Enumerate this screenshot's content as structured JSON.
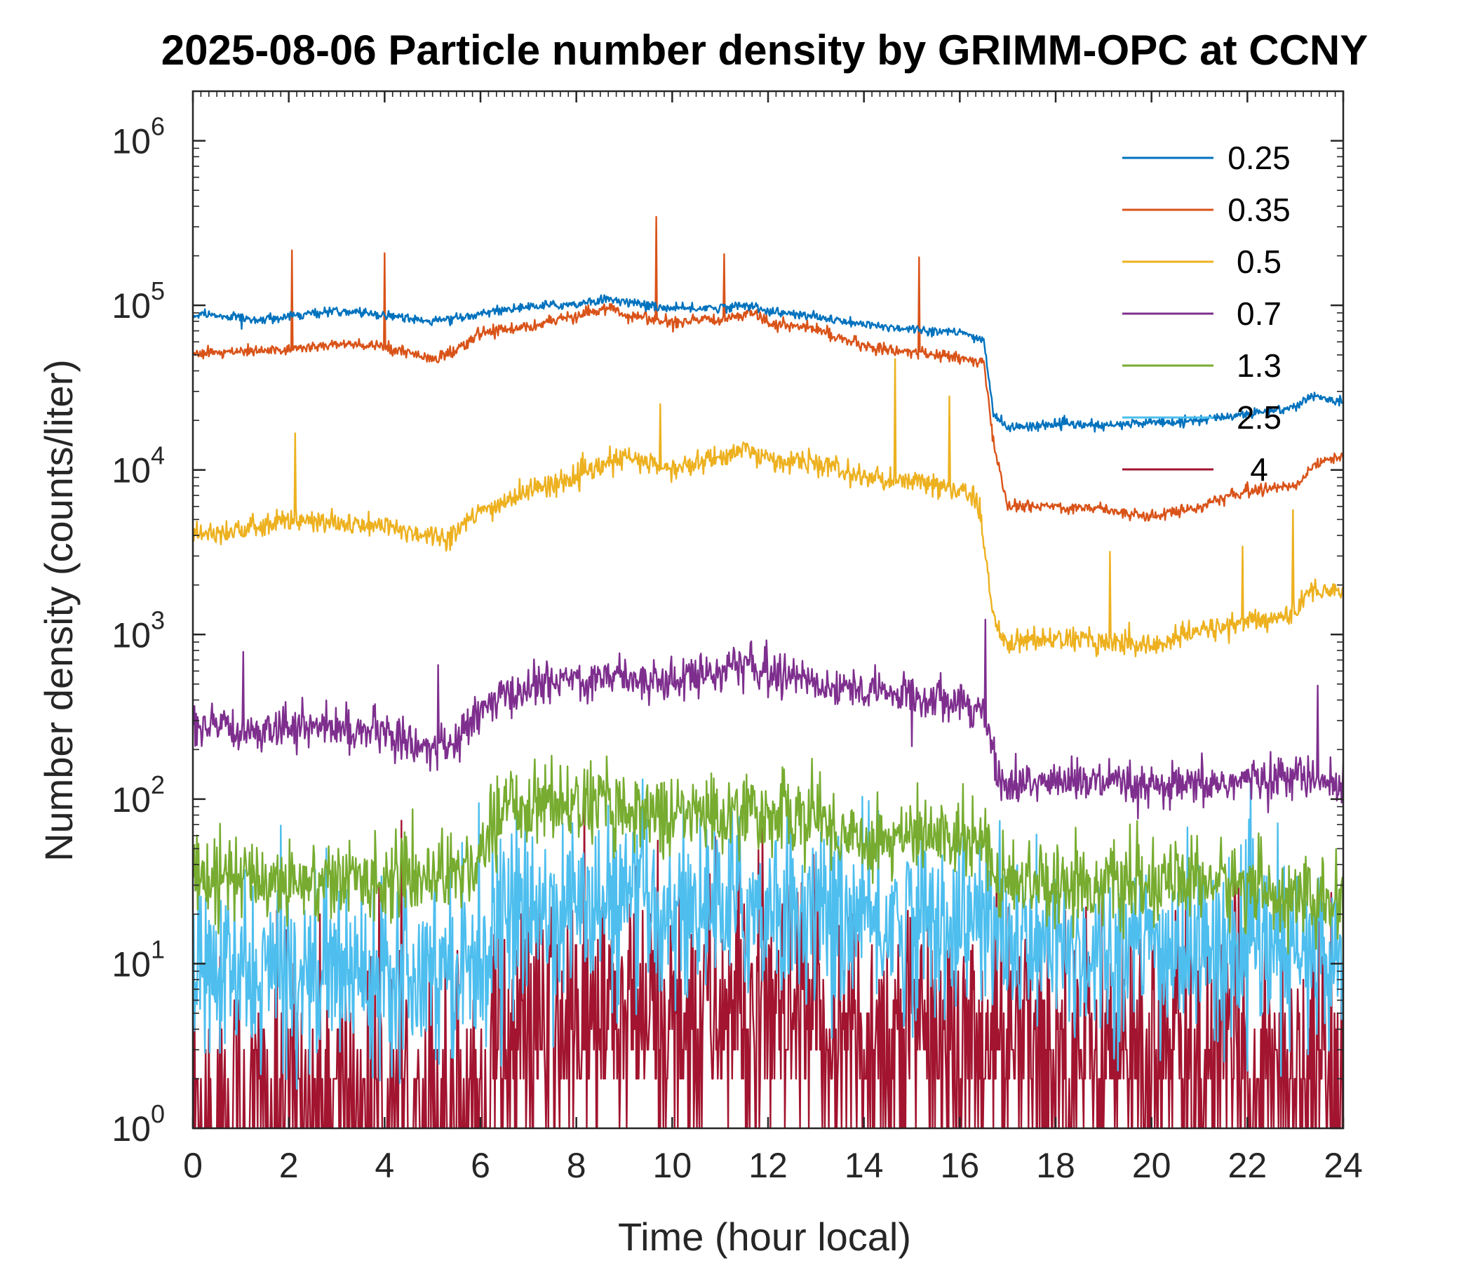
{
  "chart_data": {
    "type": "line",
    "title": "2025-08-06 Particle number density by GRIMM-OPC at CCNY",
    "xlabel": "Time (hour local)",
    "ylabel": "Number density (counts/liter)",
    "xlim": [
      0,
      24
    ],
    "ylim": [
      1,
      2000000
    ],
    "yscale": "log",
    "grid": false,
    "legend_position": "top-right",
    "x_ticks": [
      "0",
      "2",
      "4",
      "6",
      "8",
      "10",
      "12",
      "14",
      "16",
      "18",
      "20",
      "22",
      "24"
    ],
    "y_tick_exponents": [
      "0",
      "1",
      "2",
      "3",
      "4",
      "5",
      "6"
    ],
    "y_tick_base": "10",
    "series": [
      {
        "name": "0.25",
        "color": "#0072BD",
        "noise": 0.04,
        "x": [
          0,
          1,
          1.5,
          2,
          3,
          4,
          5,
          5.5,
          6,
          7,
          8,
          8.7,
          9,
          10,
          11,
          11.7,
          12,
          13,
          14,
          15,
          16,
          16.5,
          16.7,
          17,
          18,
          19,
          20,
          21,
          22,
          23,
          23.3,
          24
        ],
        "y": [
          88000,
          84000,
          82000,
          87000,
          92000,
          88000,
          80000,
          82000,
          90000,
          98000,
          102000,
          110000,
          105000,
          95000,
          97000,
          100000,
          92000,
          85000,
          76000,
          72000,
          68000,
          62000,
          22000,
          18000,
          19000,
          18500,
          19500,
          20000,
          22000,
          24000,
          28000,
          26000
        ]
      },
      {
        "name": "0.35",
        "color": "#D95319",
        "noise": 0.05,
        "x": [
          0,
          1,
          2,
          3,
          4,
          5,
          5.5,
          6,
          7,
          8,
          8.7,
          9,
          10,
          11,
          11.7,
          12,
          13,
          14,
          15,
          16,
          16.5,
          16.7,
          17,
          18,
          19,
          20,
          21,
          22,
          23,
          23.4,
          24
        ],
        "y": [
          52000,
          52000,
          54000,
          58000,
          56000,
          48000,
          52000,
          68000,
          75000,
          85000,
          98000,
          88000,
          78000,
          82000,
          92000,
          78000,
          72000,
          56000,
          52000,
          48000,
          44000,
          15000,
          6000,
          6000,
          5800,
          5200,
          6000,
          7500,
          8000,
          11000,
          12000
        ]
      },
      {
        "name": "0.5",
        "color": "#EDB120",
        "noise": 0.1,
        "x": [
          0,
          1,
          1.5,
          2,
          3,
          4,
          5,
          5.3,
          6,
          7,
          8,
          9,
          10,
          11,
          11.5,
          12,
          13,
          14,
          15,
          16,
          16.4,
          16.7,
          17,
          18,
          19,
          20,
          21,
          22,
          23,
          23.3,
          24
        ],
        "y": [
          4200,
          4300,
          4500,
          5000,
          4700,
          4500,
          4000,
          3900,
          5500,
          7500,
          9000,
          12000,
          10000,
          12000,
          13500,
          11500,
          11000,
          9000,
          8500,
          7500,
          6500,
          1200,
          900,
          950,
          900,
          850,
          1050,
          1200,
          1300,
          1900,
          1800
        ]
      },
      {
        "name": "0.7",
        "color": "#7E2F8E",
        "noise": 0.18,
        "x": [
          0,
          1,
          2,
          3,
          4,
          5,
          5.5,
          6,
          7,
          8,
          9,
          10,
          11,
          11.5,
          12,
          13,
          14,
          15,
          16,
          16.5,
          16.8,
          17,
          18,
          19,
          20,
          21,
          22,
          23,
          24
        ],
        "y": [
          270,
          260,
          280,
          270,
          250,
          200,
          220,
          350,
          480,
          540,
          560,
          520,
          620,
          650,
          600,
          520,
          450,
          420,
          410,
          330,
          140,
          120,
          130,
          125,
          115,
          120,
          130,
          140,
          120
        ]
      },
      {
        "name": "1.3",
        "color": "#77AC30",
        "noise": 0.35,
        "x": [
          0,
          1,
          2,
          3,
          4,
          5,
          6,
          6.3,
          7,
          8,
          9,
          10,
          11,
          12,
          13,
          13.5,
          14,
          15,
          16,
          16.5,
          16.8,
          17,
          18,
          19,
          20,
          21,
          22,
          23,
          24
        ],
        "y": [
          38,
          33,
          32,
          32,
          33,
          35,
          40,
          85,
          95,
          95,
          90,
          80,
          82,
          82,
          80,
          62,
          58,
          58,
          60,
          58,
          35,
          33,
          32,
          30,
          30,
          32,
          30,
          25,
          22
        ]
      },
      {
        "name": "2.5",
        "color": "#4DBEEE",
        "noise": 0.55,
        "x": [
          0,
          1,
          2,
          3,
          4,
          5,
          6,
          6.3,
          7,
          8,
          9,
          10,
          11,
          12,
          13,
          14,
          15,
          16,
          16.5,
          17,
          18,
          19,
          20,
          21,
          22,
          23,
          24
        ],
        "y": [
          9,
          8,
          9,
          9,
          10,
          10,
          11,
          17,
          20,
          22,
          22,
          21,
          22,
          22,
          20,
          17,
          18,
          18,
          18,
          13,
          12,
          12,
          12,
          12,
          12,
          11,
          10
        ]
      },
      {
        "name": "4",
        "color": "#A2142F",
        "noise": 0.9,
        "x": [
          0,
          2,
          4,
          6,
          6.3,
          8,
          10,
          11,
          12,
          14,
          16,
          17,
          20,
          22,
          24
        ],
        "y": [
          1.3,
          1.4,
          1.4,
          1.6,
          3,
          4,
          4.5,
          5,
          4,
          3.5,
          3,
          3,
          2.5,
          2.4,
          2
        ]
      }
    ]
  }
}
